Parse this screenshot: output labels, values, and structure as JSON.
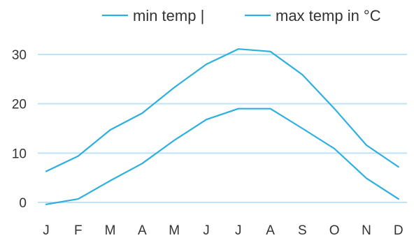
{
  "chart_data": {
    "type": "line",
    "categories": [
      "J",
      "F",
      "M",
      "A",
      "M",
      "J",
      "J",
      "A",
      "S",
      "O",
      "N",
      "D"
    ],
    "series": [
      {
        "name": "min temp |",
        "values": [
          -0.4,
          0.7,
          4.4,
          7.9,
          12.6,
          16.8,
          19.0,
          19.0,
          15.0,
          10.9,
          4.9,
          0.7
        ]
      },
      {
        "name": "max temp in °C",
        "values": [
          6.3,
          9.4,
          14.7,
          18.1,
          23.3,
          28.0,
          31.1,
          30.6,
          25.9,
          19.0,
          11.6,
          7.2
        ]
      }
    ],
    "yticks": [
      0,
      10,
      20,
      30
    ],
    "ylim": [
      -1,
      32
    ],
    "grid": true,
    "legend_position": "top-right",
    "colors": {
      "line": "#2bb0e0",
      "grid": "#bfe3f4",
      "text": "#333333"
    }
  }
}
